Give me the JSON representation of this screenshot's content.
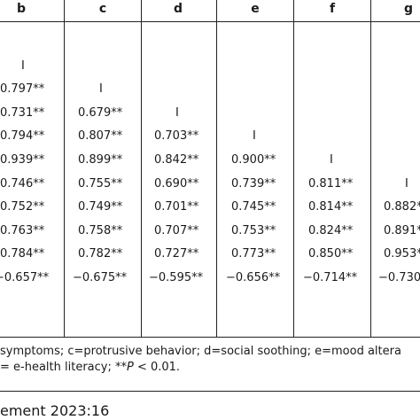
{
  "table": {
    "headers": [
      "b",
      "c",
      "d",
      "e",
      "f",
      "g"
    ],
    "rows": [
      [
        "I",
        "",
        "",
        "",
        "",
        ""
      ],
      [
        "0.797**",
        "I",
        "",
        "",
        "",
        ""
      ],
      [
        "0.731**",
        "0.679**",
        "I",
        "",
        "",
        ""
      ],
      [
        "0.794**",
        "0.807**",
        "0.703**",
        "I",
        "",
        ""
      ],
      [
        "0.939**",
        "0.899**",
        "0.842**",
        "0.900**",
        "I",
        ""
      ],
      [
        "0.746**",
        "0.755**",
        "0.690**",
        "0.739**",
        "0.811**",
        "I"
      ],
      [
        "0.752**",
        "0.749**",
        "0.701**",
        "0.745**",
        "0.814**",
        "0.882*"
      ],
      [
        "0.763**",
        "0.758**",
        "0.707**",
        "0.753**",
        "0.824**",
        "0.891*"
      ],
      [
        "0.784**",
        "0.782**",
        "0.727**",
        "0.773**",
        "0.850**",
        "0.953*"
      ],
      [
        "−0.657**",
        "−0.675**",
        "−0.595**",
        "−0.656**",
        "−0.714**",
        "−0.730"
      ]
    ]
  },
  "notes": {
    "line1": "symptoms; c=protrusive behavior; d=social soothing; e=mood altera",
    "line2_prefix": "= e-health literacy; **",
    "line2_italic": "P",
    "line2_suffix": " < 0.01."
  },
  "footer": "ement 2023:16"
}
